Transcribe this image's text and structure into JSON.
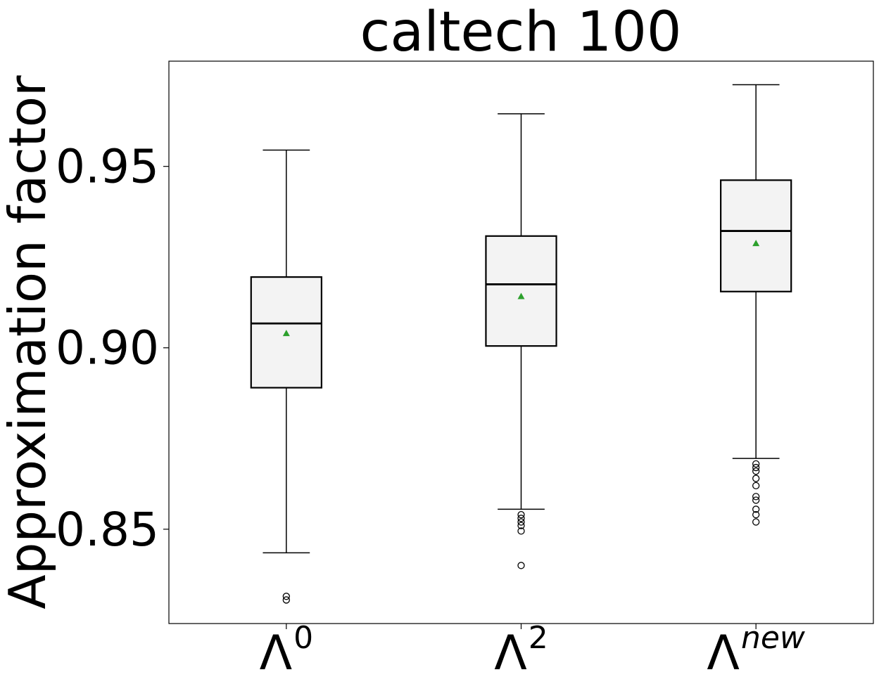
{
  "chart_data": {
    "type": "box",
    "title": "caltech 100",
    "xlabel": "",
    "ylabel": "Approximation factor",
    "ylim": [
      0.824,
      0.979
    ],
    "yticks": [
      "0.85",
      "0.90",
      "0.95"
    ],
    "grid": false,
    "series": [
      {
        "label_base": "Λ",
        "label_sup": "0",
        "whisker_low": 0.8435,
        "q1": 0.889,
        "median": 0.9067,
        "q3": 0.9195,
        "whisker_high": 0.9545,
        "mean": 0.904,
        "outliers": [
          0.8315,
          0.8305
        ]
      },
      {
        "label_base": "Λ",
        "label_sup": "2",
        "whisker_low": 0.8555,
        "q1": 0.9005,
        "median": 0.9175,
        "q3": 0.9308,
        "whisker_high": 0.9645,
        "mean": 0.9142,
        "outliers": [
          0.854,
          0.853,
          0.852,
          0.851,
          0.8495,
          0.84
        ]
      },
      {
        "label_base": "Λ",
        "label_sup": "new",
        "whisker_low": 0.8695,
        "q1": 0.9155,
        "median": 0.9322,
        "q3": 0.9462,
        "whisker_high": 0.9725,
        "mean": 0.9288,
        "outliers": [
          0.868,
          0.867,
          0.866,
          0.864,
          0.862,
          0.859,
          0.858,
          0.8555,
          0.854,
          0.852
        ]
      }
    ],
    "colors": {
      "box_fill": "#f3f3f3",
      "box_edge": "#000000",
      "mean_marker": "#2ca02c",
      "outlier_edge": "#000000"
    }
  }
}
